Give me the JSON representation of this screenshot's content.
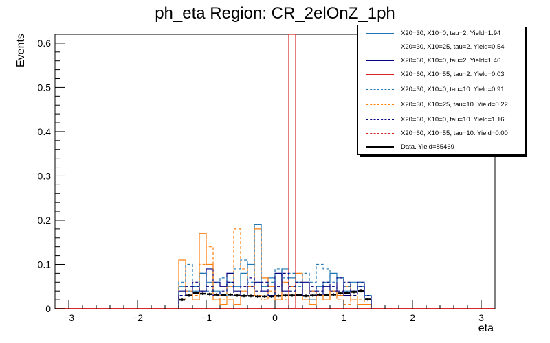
{
  "chart_data": {
    "type": "histogram",
    "title": "ph_eta Region: CR_2elOnZ_1ph",
    "xlabel": "eta",
    "ylabel": "Events",
    "xlim": [
      -3.2,
      3.2
    ],
    "ylim": [
      0,
      0.62
    ],
    "xticks": [
      -3,
      -2,
      -1,
      0,
      1,
      2,
      3
    ],
    "yticks": [
      0,
      0.1,
      0.2,
      0.3,
      0.4,
      0.5,
      0.6
    ],
    "bin_edges": [
      -1.4,
      -1.3,
      -1.2,
      -1.1,
      -1.0,
      -0.9,
      -0.8,
      -0.7,
      -0.6,
      -0.5,
      -0.4,
      -0.3,
      -0.2,
      -0.1,
      0.0,
      0.1,
      0.2,
      0.3,
      0.4,
      0.5,
      0.6,
      0.7,
      0.8,
      0.9,
      1.0,
      1.1,
      1.2,
      1.3,
      1.4
    ],
    "series": [
      {
        "name": "X20=30, X10=0, tau=2. Yield=1.94",
        "color": "#1f77b4",
        "dashed": false,
        "values": [
          0.05,
          0.04,
          0.04,
          0.08,
          0.06,
          0.04,
          0.03,
          0.06,
          0.05,
          0.08,
          0.1,
          0.19,
          0.05,
          0.07,
          0.03,
          0.09,
          0.07,
          0.06,
          0.03,
          0.02,
          0.05,
          0.06,
          0.08,
          0.07,
          0.04,
          0.06,
          0.05,
          0.02
        ]
      },
      {
        "name": "X20=30, X10=25, tau=2. Yield=0.54",
        "color": "#ff7f0e",
        "dashed": false,
        "values": [
          0.11,
          0.03,
          0.02,
          0.17,
          0.1,
          0.02,
          0.01,
          0.02,
          0.01,
          0.04,
          0.03,
          0.18,
          0.07,
          0.05,
          0.02,
          0.06,
          0.03,
          0.08,
          0.02,
          0.01,
          0.03,
          0.02,
          0.04,
          0.03,
          0.05,
          0.02,
          0.01,
          0.01
        ]
      },
      {
        "name": "X20=60, X10=0, tau=2. Yield=1.46",
        "color": "#000080",
        "dashed": false,
        "values": [
          0.04,
          0.03,
          0.05,
          0.04,
          0.09,
          0.06,
          0.05,
          0.08,
          0.04,
          0.03,
          0.05,
          0.06,
          0.04,
          0.03,
          0.08,
          0.04,
          0.05,
          0.03,
          0.06,
          0.04,
          0.03,
          0.05,
          0.04,
          0.07,
          0.03,
          0.04,
          0.06,
          0.03
        ]
      },
      {
        "name": "X20=60, X10=55, tau=2. Yield=0.03",
        "color": "#d62728",
        "dashed": false,
        "values": [
          0,
          0,
          0,
          0,
          0,
          0,
          0,
          0,
          0,
          0,
          0,
          0,
          0,
          0,
          0,
          0,
          0.62,
          0,
          0,
          0,
          0,
          0,
          0,
          0,
          0,
          0,
          0,
          0
        ]
      },
      {
        "name": "X20=30, X10=0, tau=10. Yield=0.91",
        "color": "#1f77b4",
        "dashed": true,
        "values": [
          0.06,
          0.1,
          0.05,
          0.08,
          0.04,
          0.06,
          0.07,
          0.05,
          0.09,
          0.11,
          0.06,
          0.19,
          0.05,
          0.06,
          0.09,
          0.07,
          0.08,
          0.05,
          0.08,
          0.06,
          0.1,
          0.09,
          0.06,
          0.07,
          0.05,
          0.04,
          0.06,
          0.03
        ]
      },
      {
        "name": "X20=30, X10=25, tau=10. Yield=0.22",
        "color": "#ff7f0e",
        "dashed": true,
        "values": [
          0.02,
          0.04,
          0.03,
          0.1,
          0.14,
          0.03,
          0.02,
          0.05,
          0.18,
          0.09,
          0.05,
          0.03,
          0.02,
          0.04,
          0.03,
          0.02,
          0.05,
          0.03,
          0.02,
          0.04,
          0.03,
          0.02,
          0.04,
          0.02,
          0.01,
          0.03,
          0.02,
          0.01
        ]
      },
      {
        "name": "X20=60, X10=0, tau=10. Yield=1.16",
        "color": "#000080",
        "dashed": true,
        "values": [
          0.03,
          0.05,
          0.06,
          0.04,
          0.05,
          0.03,
          0.04,
          0.06,
          0.03,
          0.05,
          0.07,
          0.04,
          0.06,
          0.03,
          0.05,
          0.08,
          0.04,
          0.06,
          0.03,
          0.05,
          0.04,
          0.06,
          0.05,
          0.04,
          0.06,
          0.03,
          0.05,
          0.02
        ]
      },
      {
        "name": "X20=60, X10=55, tau=10. Yield=0.00",
        "color": "#d62728",
        "dashed": true,
        "values": [
          0,
          0,
          0,
          0,
          0,
          0,
          0,
          0,
          0,
          0,
          0,
          0,
          0,
          0,
          0,
          0,
          0,
          0,
          0,
          0,
          0,
          0,
          0,
          0,
          0,
          0,
          0,
          0
        ]
      }
    ],
    "data_series": {
      "name": "Data. Yield=85469",
      "color": "#000000",
      "values": [
        0.02,
        0.03,
        0.036,
        0.034,
        0.033,
        0.032,
        0.031,
        0.032,
        0.03,
        0.029,
        0.029,
        0.028,
        0.028,
        0.028,
        0.029,
        0.03,
        0.03,
        0.031,
        0.029,
        0.03,
        0.032,
        0.031,
        0.032,
        0.035,
        0.036,
        0.038,
        0.04,
        0.021
      ]
    }
  }
}
